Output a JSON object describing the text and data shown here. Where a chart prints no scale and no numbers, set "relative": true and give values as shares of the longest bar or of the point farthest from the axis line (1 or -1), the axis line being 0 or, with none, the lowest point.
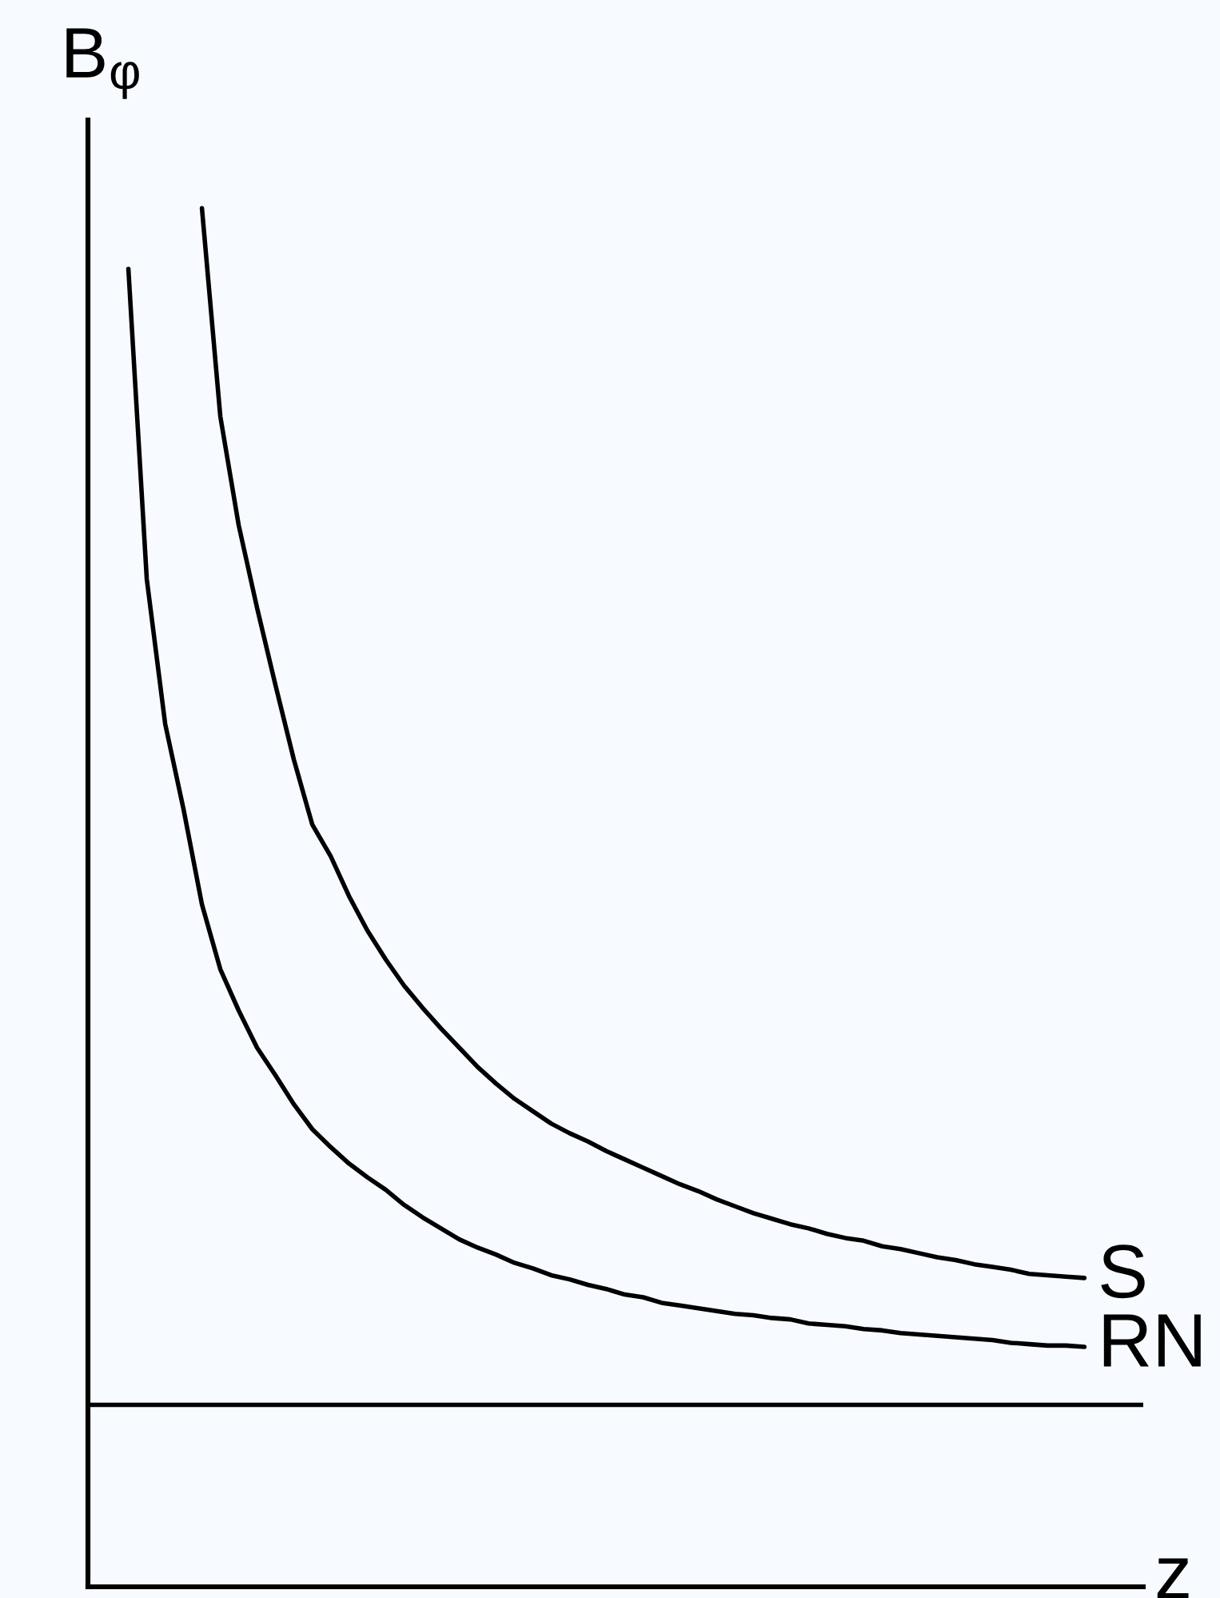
{
  "chart_data": {
    "type": "line",
    "relative": true,
    "ylabel": "B$_{φ}$",
    "xlabel": "z",
    "tick_labels": false,
    "marker": "none",
    "line_style": "solid",
    "categories": [
      null,
      null,
      null,
      null,
      null,
      null,
      null,
      null,
      null,
      null,
      null,
      null,
      null,
      null,
      null,
      null,
      null,
      null,
      null,
      null,
      null,
      null,
      null,
      null,
      null,
      null,
      null,
      null,
      null,
      null,
      null,
      null,
      null,
      null,
      null,
      null,
      null,
      null,
      null,
      null,
      null,
      null,
      null,
      null,
      null,
      null,
      null,
      null,
      null,
      null,
      null,
      null,
      null
    ],
    "series": [
      {
        "name": "S",
        "color": "#000000",
        "values": [
          null,
          null,
          null,
          null,
          1,
          0.849,
          0.77,
          0.71,
          0.654,
          0.6,
          0.553,
          0.53,
          0.501,
          0.476,
          0.455,
          0.436,
          0.42,
          0.405,
          0.391,
          0.377,
          0.365,
          0.354,
          0.345,
          0.336,
          0.329,
          0.323,
          0.316,
          0.31,
          0.304,
          0.298,
          0.292,
          0.287,
          0.281,
          0.276,
          0.271,
          0.267,
          0.263,
          0.26,
          0.256,
          0.253,
          0.251,
          0.247,
          0.245,
          0.242,
          0.239,
          0.237,
          0.234,
          0.232,
          0.23,
          0.227,
          0.226,
          0.225,
          0.224
        ]
      },
      {
        "name": "RN",
        "color": "#000000",
        "values": [
          0.956,
          0.731,
          0.626,
          0.564,
          0.495,
          0.448,
          0.418,
          0.391,
          0.371,
          0.35,
          0.332,
          0.319,
          0.307,
          0.297,
          0.288,
          0.277,
          0.268,
          0.26,
          0.252,
          0.246,
          0.241,
          0.235,
          0.231,
          0.226,
          0.223,
          0.219,
          0.216,
          0.212,
          0.21,
          0.206,
          0.204,
          0.202,
          0.2,
          0.198,
          0.197,
          0.195,
          0.194,
          0.191,
          0.19,
          0.189,
          0.187,
          0.186,
          0.184,
          0.183,
          0.182,
          0.181,
          0.18,
          0.179,
          0.177,
          0.176,
          0.175,
          0.175,
          0.174
        ]
      }
    ],
    "ref_lines": [
      {
        "axis": "y",
        "value": 0.132,
        "color": "#000000",
        "line_style": "solid"
      }
    ]
  }
}
